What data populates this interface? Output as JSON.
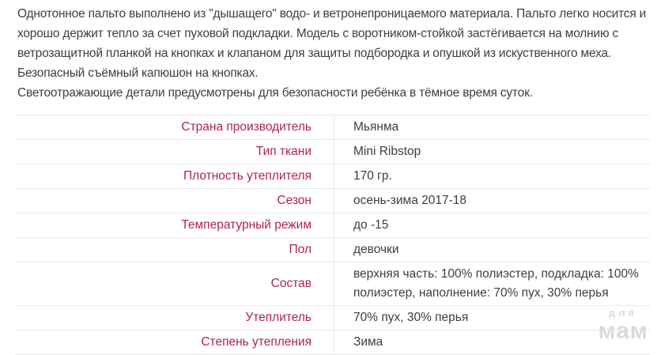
{
  "description": {
    "paragraph1": "Однотонное пальто выполнено из \"дышащего\" водо- и ветронепроницаемого материала. Пальто легко носится и хорошо держит тепло за счет пуховой подкладки. Модель с воротником-стойкой застёгивается на молнию с ветрозащитной планкой на кнопках и клапаном для защиты подбородка и опушкой из искуственного меха. Безопасный съёмный капюшон на кнопках.",
    "paragraph2": "Светоотражающие детали предусмотрены для безопасности ребёнка в тёмное время суток."
  },
  "specs": {
    "rows": [
      {
        "label": "Страна производитель",
        "value": "Мьянма"
      },
      {
        "label": "Тип ткани",
        "value": "Mini Ribstop"
      },
      {
        "label": "Плотность утеплителя",
        "value": "170 гр."
      },
      {
        "label": "Сезон",
        "value": "осень-зима 2017-18"
      },
      {
        "label": "Температурный режим",
        "value": "до -15"
      },
      {
        "label": "Пол",
        "value": "девочки"
      },
      {
        "label": "Состав",
        "value": "верхняя часть: 100% полиэстер, подкладка: 100% полиэстер, наполнение: 70% пух, 30% перья"
      },
      {
        "label": "Утеплитель",
        "value": "70% пух, 30% перья"
      },
      {
        "label": "Степень утепления",
        "value": "Зима"
      }
    ]
  },
  "watermark": {
    "line1": "для",
    "line2": "мам"
  },
  "colors": {
    "label_accent": "#b0234f",
    "body_text": "#3e3e3e",
    "table_border": "#e9e9e9",
    "watermark_gray": "#dbdbdb"
  }
}
